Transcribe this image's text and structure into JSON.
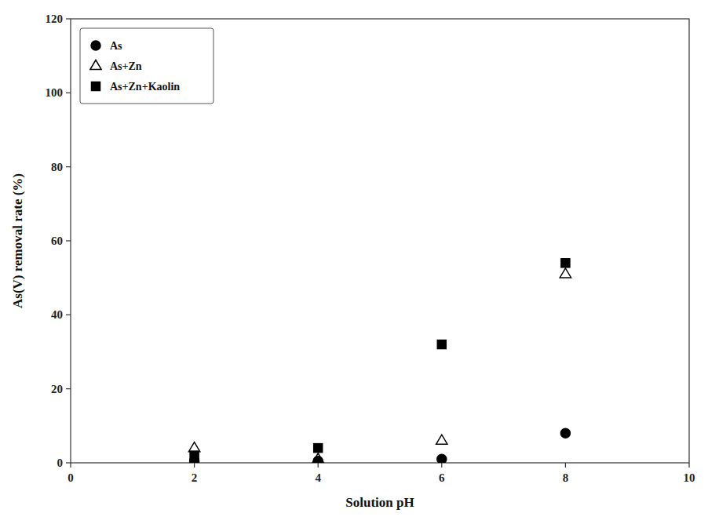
{
  "chart_data": {
    "type": "scatter",
    "xlabel": "Solution pH",
    "ylabel": "As(V) removal rate (%)",
    "x": [
      2,
      4,
      6,
      8
    ],
    "xlim": [
      0,
      10
    ],
    "ylim": [
      0,
      120
    ],
    "xticks": [
      0,
      2,
      4,
      6,
      8,
      10
    ],
    "yticks": [
      0,
      20,
      40,
      60,
      80,
      100,
      120
    ],
    "legend": "upper left",
    "series": [
      {
        "name": "As",
        "marker": "circle",
        "color": "#000000",
        "values": [
          0.5,
          0.5,
          1.0,
          8.0
        ]
      },
      {
        "name": "As+Zn",
        "marker": "triangle-open",
        "color": "#000000",
        "values": [
          4.0,
          1.0,
          6.0,
          51.0
        ]
      },
      {
        "name": "As+Zn+Kaolin",
        "marker": "square",
        "color": "#000000",
        "values": [
          2.0,
          4.0,
          32.0,
          54.0
        ]
      }
    ]
  }
}
